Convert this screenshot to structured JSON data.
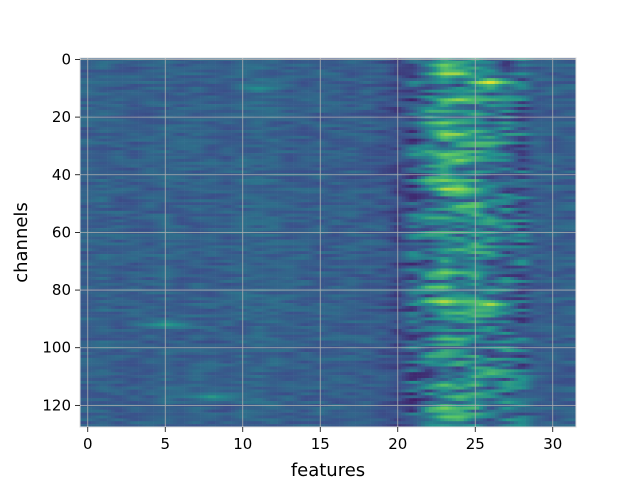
{
  "chart_data": {
    "type": "heatmap",
    "title": "",
    "xlabel": "features",
    "ylabel": "channels",
    "xlim": [
      -0.5,
      31.5
    ],
    "ylim": [
      127.5,
      -0.5
    ],
    "n_columns": 32,
    "n_rows": 128,
    "x_ticks": [
      0,
      5,
      10,
      15,
      20,
      25,
      30
    ],
    "y_ticks": [
      0,
      20,
      40,
      60,
      80,
      100,
      120
    ],
    "y_inverted": true,
    "grid": true,
    "colormap": "viridis",
    "colormap_stops": [
      "#440154",
      "#3b528b",
      "#21918c",
      "#5ec962",
      "#fde725"
    ],
    "background_value_range": [
      0.2,
      0.45
    ],
    "high_activity_columns": [
      21,
      28
    ],
    "column_profile": [
      0.3,
      0.32,
      0.3,
      0.3,
      0.3,
      0.32,
      0.3,
      0.31,
      0.3,
      0.3,
      0.32,
      0.33,
      0.32,
      0.3,
      0.3,
      0.3,
      0.3,
      0.3,
      0.3,
      0.28,
      0.22,
      0.3,
      0.36,
      0.42,
      0.4,
      0.46,
      0.4,
      0.36,
      0.33,
      0.3,
      0.3,
      0.3
    ],
    "hotspots": [
      {
        "channel": 2,
        "feature": 23,
        "value": 0.8
      },
      {
        "channel": 5,
        "feature": 23.5,
        "value": 0.92
      },
      {
        "channel": 8,
        "feature": 26,
        "value": 0.98
      },
      {
        "channel": 14,
        "feature": 24,
        "value": 0.85
      },
      {
        "channel": 18,
        "feature": 22.5,
        "value": 0.7
      },
      {
        "channel": 22,
        "feature": 23,
        "value": 0.8
      },
      {
        "channel": 26,
        "feature": 23.5,
        "value": 0.9
      },
      {
        "channel": 29,
        "feature": 25.5,
        "value": 0.72
      },
      {
        "channel": 33,
        "feature": 23,
        "value": 0.78
      },
      {
        "channel": 35,
        "feature": 24,
        "value": 0.82
      },
      {
        "channel": 42,
        "feature": 23,
        "value": 0.8
      },
      {
        "channel": 45,
        "feature": 23.5,
        "value": 0.95
      },
      {
        "channel": 51,
        "feature": 24.5,
        "value": 0.8
      },
      {
        "channel": 55,
        "feature": 22.5,
        "value": 0.65
      },
      {
        "channel": 66,
        "feature": 24,
        "value": 0.68
      },
      {
        "channel": 74,
        "feature": 23,
        "value": 0.8
      },
      {
        "channel": 79,
        "feature": 22.5,
        "value": 0.82
      },
      {
        "channel": 84,
        "feature": 23,
        "value": 0.9
      },
      {
        "channel": 85,
        "feature": 26,
        "value": 0.9
      },
      {
        "channel": 88,
        "feature": 24,
        "value": 0.7
      },
      {
        "channel": 97,
        "feature": 23.5,
        "value": 0.72
      },
      {
        "channel": 103,
        "feature": 22.5,
        "value": 0.65
      },
      {
        "channel": 109,
        "feature": 26,
        "value": 0.7
      },
      {
        "channel": 113,
        "feature": 23,
        "value": 0.75
      },
      {
        "channel": 117,
        "feature": 24,
        "value": 0.7
      },
      {
        "channel": 121,
        "feature": 23,
        "value": 0.8
      },
      {
        "channel": 124,
        "feature": 23.5,
        "value": 0.78
      },
      {
        "channel": 92,
        "feature": 5,
        "value": 0.55
      },
      {
        "channel": 117,
        "feature": 8,
        "value": 0.55
      },
      {
        "channel": 10,
        "feature": 11,
        "value": 0.5
      }
    ]
  }
}
